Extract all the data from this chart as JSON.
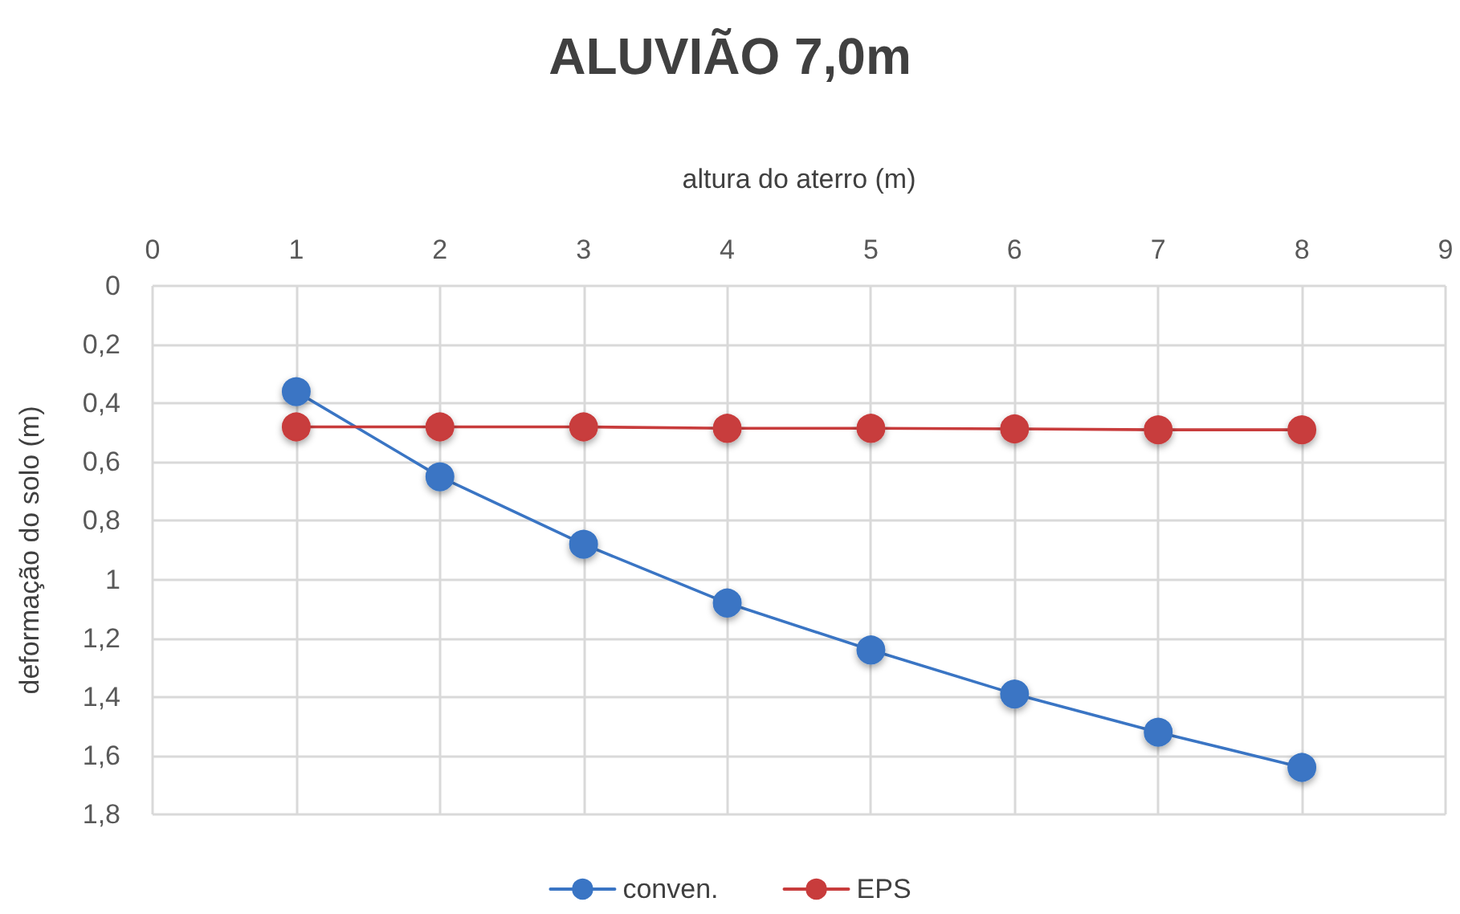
{
  "chart_data": {
    "type": "line",
    "title": "ALUVIÃO 7,0m",
    "xlabel": "altura do aterro (m)",
    "ylabel": "deformação do solo (m)",
    "x": [
      1,
      2,
      3,
      4,
      5,
      6,
      7,
      8
    ],
    "series": [
      {
        "name": "conven.",
        "color": "#3a75c4",
        "values": [
          0.36,
          0.65,
          0.88,
          1.08,
          1.24,
          1.39,
          1.52,
          1.64
        ]
      },
      {
        "name": "EPS",
        "color": "#c83c3c",
        "values": [
          0.48,
          0.48,
          0.48,
          0.485,
          0.485,
          0.487,
          0.49,
          0.49
        ]
      }
    ],
    "xlim": [
      0,
      9
    ],
    "xticks": [
      0,
      1,
      2,
      3,
      4,
      5,
      6,
      7,
      8,
      9
    ],
    "ylim": [
      1.8,
      0
    ],
    "yticks": [
      0,
      {
        "value": 0.2,
        "label": "0,2"
      },
      {
        "value": 0.4,
        "label": "0,4"
      },
      {
        "value": 0.6,
        "label": "0,6"
      },
      {
        "value": 0.8,
        "label": "0,8"
      },
      1,
      {
        "value": 1.2,
        "label": "1,2"
      },
      {
        "value": 1.4,
        "label": "1,4"
      },
      {
        "value": 1.6,
        "label": "1,6"
      },
      {
        "value": 1.8,
        "label": "1,8"
      }
    ],
    "grid": true,
    "legend": "bottom",
    "marker": "circle",
    "line_style": "solid"
  }
}
